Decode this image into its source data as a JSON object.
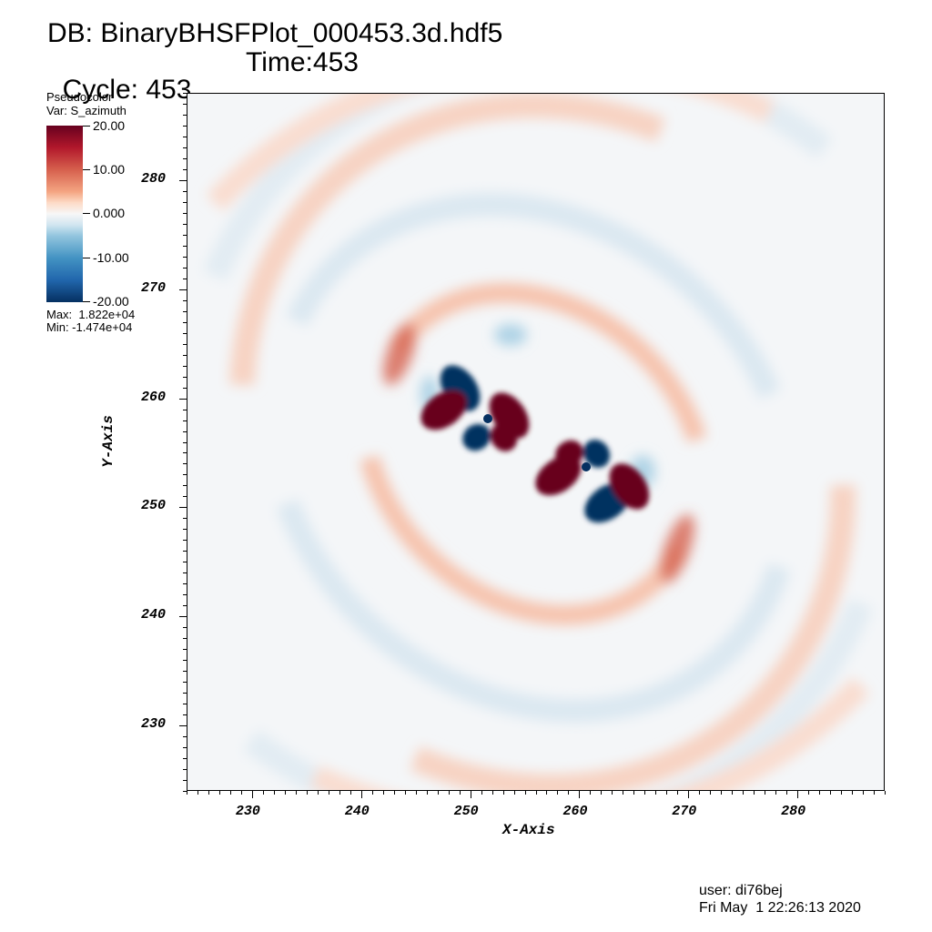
{
  "header": {
    "db_line": "DB: BinaryBHSFPlot_000453.3d.hdf5",
    "cycle_line": "Cycle: 453",
    "time_line": "Time:453"
  },
  "legend": {
    "plot_type": "Pseudocolor",
    "var_line": "Var: S_azimuth",
    "ticks": [
      "20.00",
      "10.00",
      "0.000",
      "-10.00",
      "-20.00"
    ],
    "max_line": "Max:  1.822e+04",
    "min_line": "Min: -1.474e+04",
    "colors": [
      "#67001f",
      "#b2182b",
      "#d6604d",
      "#f4a582",
      "#fddbc7",
      "#f7f7f7",
      "#d1e5f0",
      "#92c5de",
      "#4393c3",
      "#2166ac",
      "#053061"
    ]
  },
  "chart_data": {
    "type": "heatmap",
    "variable": "S_azimuth",
    "xlabel": "X-Axis",
    "ylabel": "Y-Axis",
    "xlim": [
      224,
      288
    ],
    "ylim": [
      224,
      288
    ],
    "xticks": [
      230,
      240,
      250,
      260,
      270,
      280
    ],
    "yticks": [
      230,
      240,
      250,
      260,
      270,
      280
    ],
    "color_range": [
      -20,
      20
    ],
    "data_max": 18220,
    "data_min": -14740,
    "centers": [
      [
        251.5,
        258
      ],
      [
        260.5,
        253
      ]
    ],
    "features": [
      {
        "x": 249,
        "y": 261,
        "value": -20
      },
      {
        "x": 247.5,
        "y": 259,
        "value": 20
      },
      {
        "x": 253.5,
        "y": 258.5,
        "value": 20
      },
      {
        "x": 250.5,
        "y": 256.5,
        "value": -20
      },
      {
        "x": 253,
        "y": 256.5,
        "value": 20
      },
      {
        "x": 262.5,
        "y": 250.5,
        "value": -20
      },
      {
        "x": 264.5,
        "y": 252,
        "value": 20
      },
      {
        "x": 258,
        "y": 253,
        "value": 20
      },
      {
        "x": 261.5,
        "y": 255,
        "value": -20
      },
      {
        "x": 259,
        "y": 255,
        "value": 20
      }
    ]
  },
  "footer": {
    "user_line": "user: di76bej",
    "date_line": "Fri May  1 22:26:13 2020"
  }
}
